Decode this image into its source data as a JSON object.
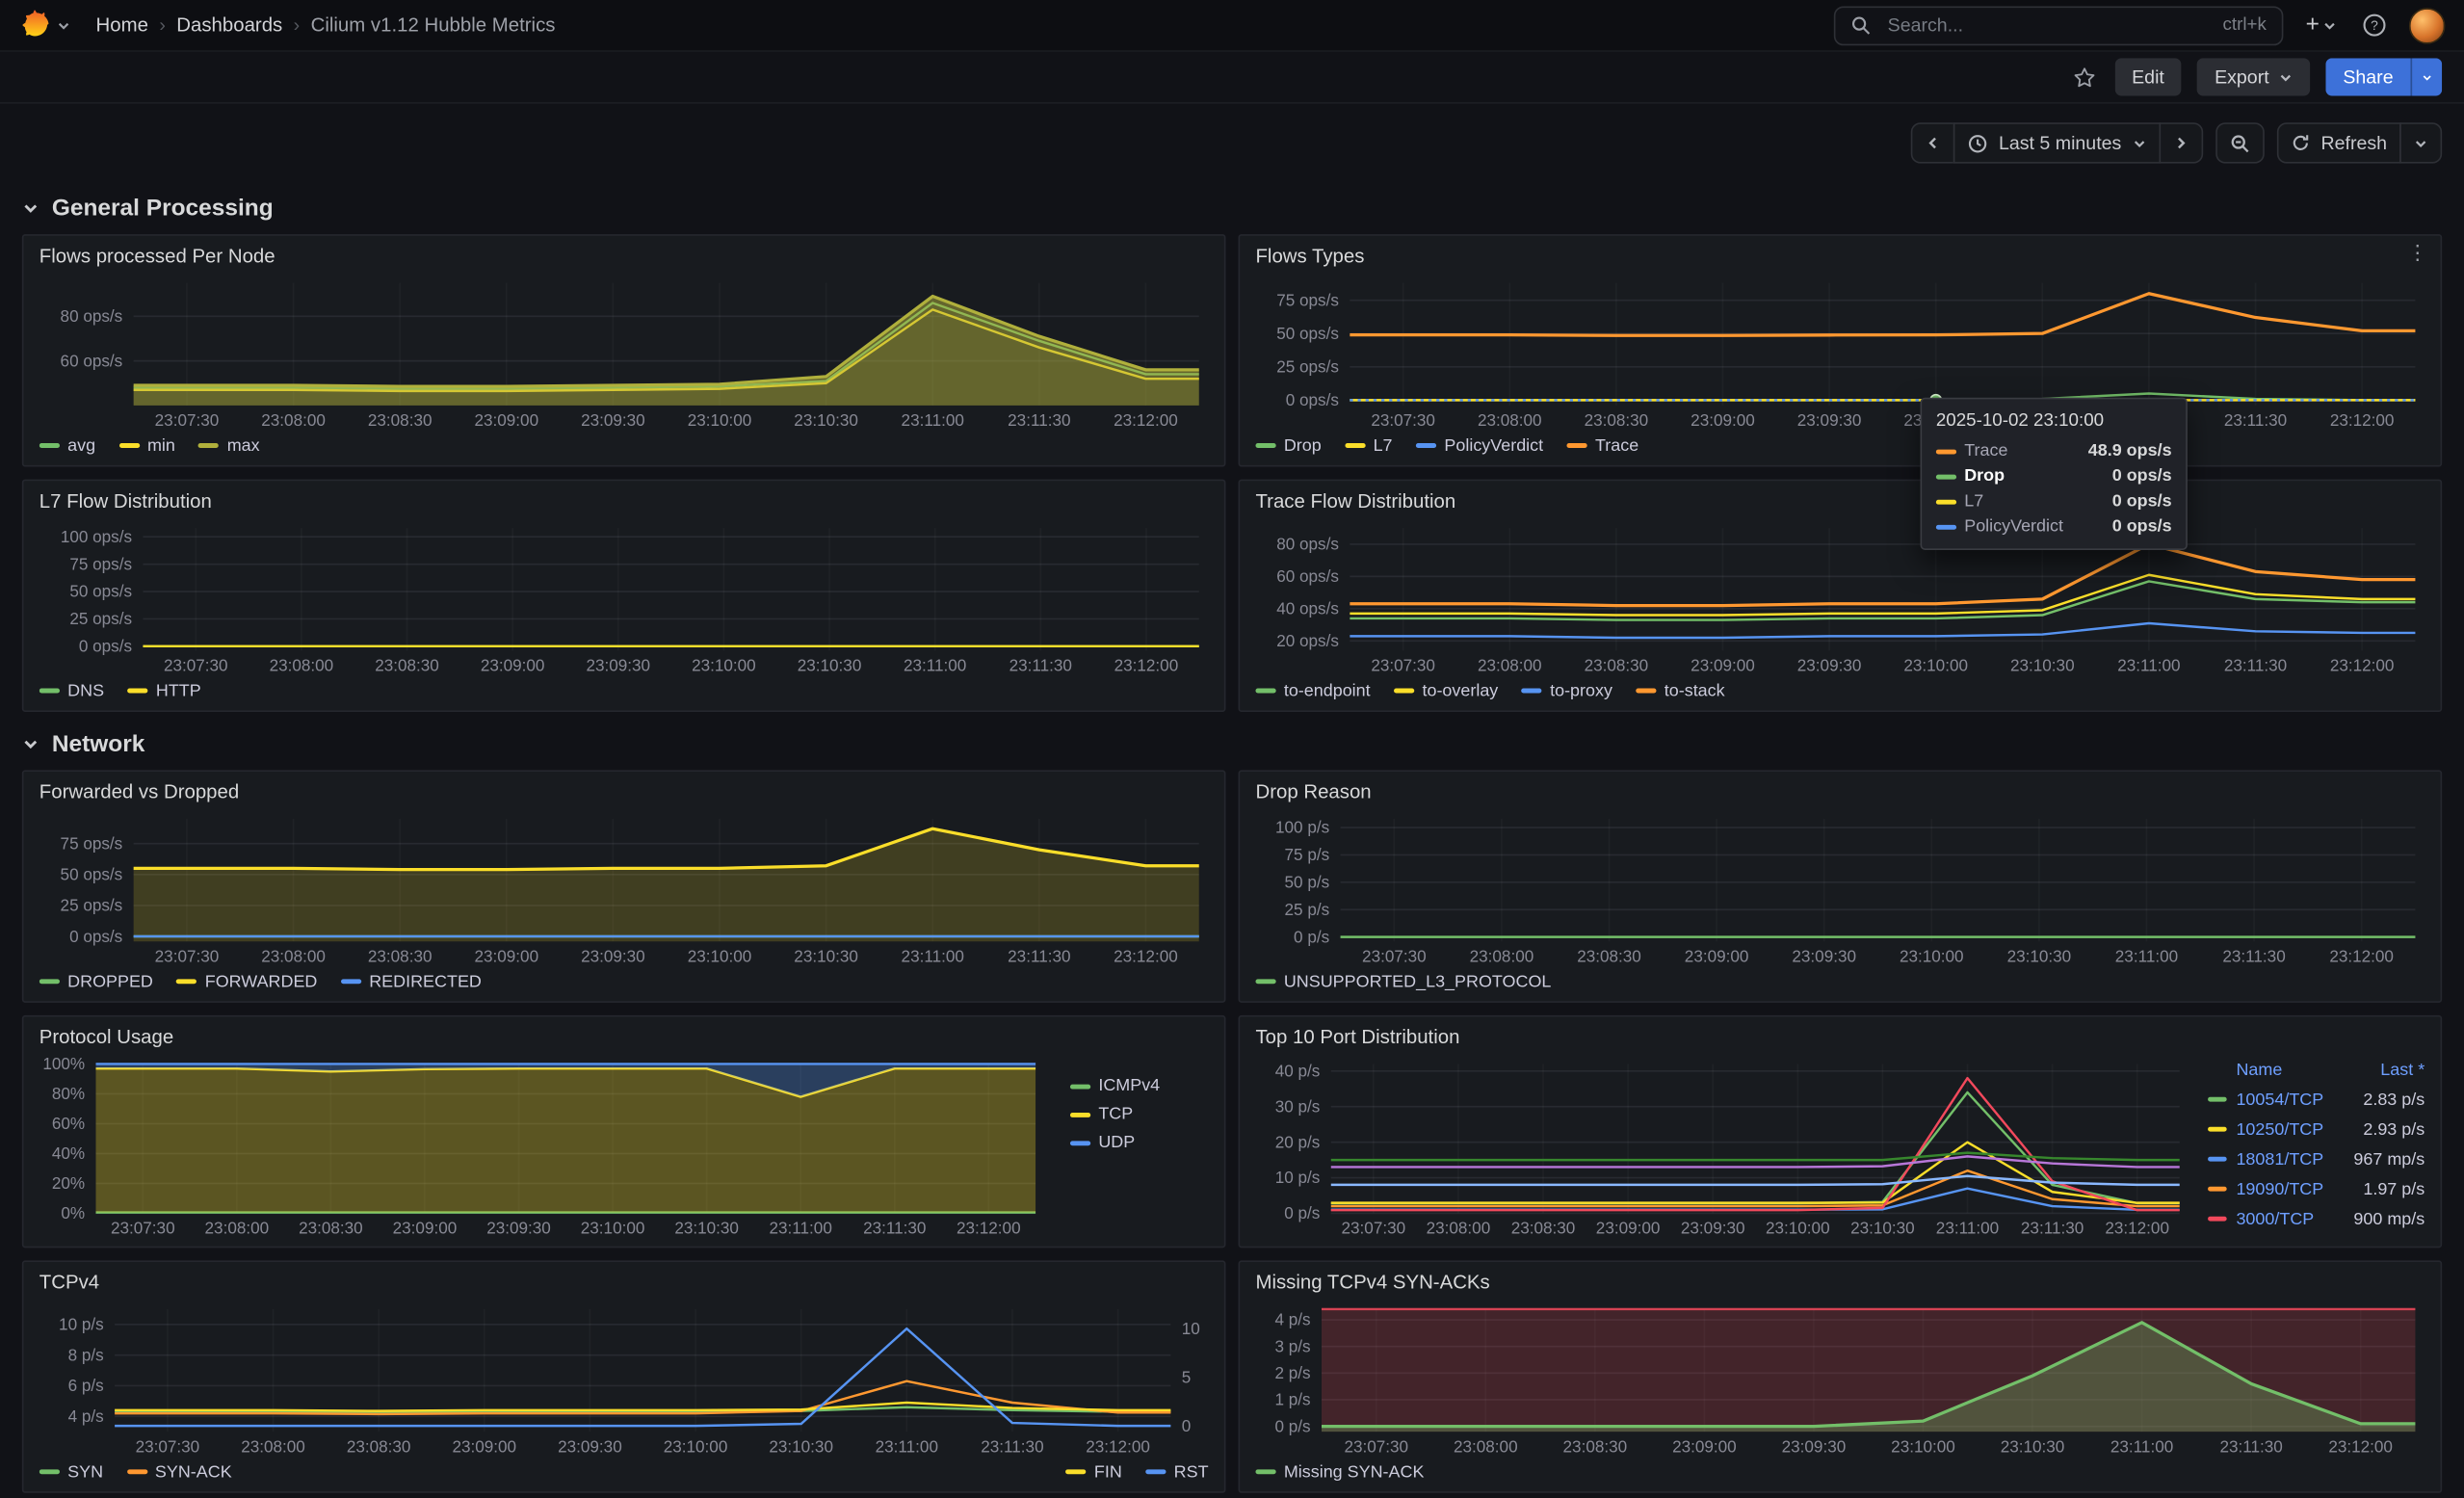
{
  "theme": {
    "primary": "#3d71d9",
    "background": "#111217",
    "panel": "#181b1f",
    "link": "#6e9fff"
  },
  "nav": {
    "breadcrumb": [
      {
        "label": "Home"
      },
      {
        "label": "Dashboards"
      },
      {
        "label": "Cilium v1.12 Hubble Metrics"
      }
    ],
    "search": {
      "placeholder": "Search...",
      "shortcut": "ctrl+k"
    }
  },
  "toolbar": {
    "edit": "Edit",
    "export": "Export",
    "share": "Share"
  },
  "timebar": {
    "range": "Last 5 minutes",
    "refresh": "Refresh"
  },
  "sections": [
    {
      "title": "General Processing"
    },
    {
      "title": "Network"
    }
  ],
  "tooltip": {
    "timestamp": "2025-10-02 23:10:00",
    "rows": [
      {
        "name": "Trace",
        "value": "48.9 ops/s",
        "color": "#ff9830",
        "bold": false
      },
      {
        "name": "Drop",
        "value": "0 ops/s",
        "color": "#73bf69",
        "bold": true
      },
      {
        "name": "L7",
        "value": "0 ops/s",
        "color": "#fade2a",
        "bold": false
      },
      {
        "name": "PolicyVerdict",
        "value": "0 ops/s",
        "color": "#5794f2",
        "bold": false
      }
    ]
  },
  "x_ticks": [
    "23:07:30",
    "23:08:00",
    "23:08:30",
    "23:09:00",
    "23:09:30",
    "23:10:00",
    "23:10:30",
    "23:11:00",
    "23:11:30",
    "23:12:00"
  ],
  "chart_data": [
    {
      "id": "flows-processed-per-node",
      "section": 0,
      "title": "Flows processed Per Node",
      "type": "area",
      "legend_placement": "bottom",
      "ylim": [
        40,
        95
      ],
      "yticks": [
        {
          "v": 60,
          "label": "60 ops/s"
        },
        {
          "v": 80,
          "label": "80 ops/s"
        }
      ],
      "series": [
        {
          "name": "avg",
          "color": "#73bf69",
          "values": [
            48,
            48,
            47.5,
            47.5,
            48,
            48.5,
            51,
            86,
            69,
            54
          ]
        },
        {
          "name": "min",
          "color": "#fade2a",
          "values": [
            47,
            47,
            46.5,
            46.5,
            47,
            47.5,
            50,
            83,
            66,
            52
          ]
        },
        {
          "name": "max",
          "color": "#b0b03c",
          "fill": 0.5,
          "width": 2,
          "values": [
            49,
            49,
            48.5,
            48.5,
            49,
            49.5,
            53,
            89,
            71,
            56
          ]
        }
      ]
    },
    {
      "id": "flows-types",
      "section": 0,
      "title": "Flows Types",
      "type": "line",
      "menu": true,
      "legend_placement": "bottom",
      "ylim": [
        -4,
        88
      ],
      "yticks": [
        {
          "v": 0,
          "label": "0 ops/s"
        },
        {
          "v": 25,
          "label": "25 ops/s"
        },
        {
          "v": 50,
          "label": "50 ops/s"
        },
        {
          "v": 75,
          "label": "75 ops/s"
        }
      ],
      "series": [
        {
          "name": "Drop",
          "color": "#73bf69",
          "values": [
            0,
            0,
            0,
            0,
            0,
            0,
            1,
            5,
            1,
            0
          ]
        },
        {
          "name": "L7",
          "color": "#fade2a",
          "values": [
            0,
            0,
            0,
            0,
            0,
            0,
            0,
            0,
            0,
            0
          ]
        },
        {
          "name": "PolicyVerdict",
          "color": "#5794f2",
          "dash": "2,3",
          "values": [
            0,
            0,
            0,
            0,
            0,
            0,
            0,
            0,
            0,
            0
          ]
        },
        {
          "name": "Trace",
          "color": "#ff9830",
          "width": 2,
          "values": [
            49,
            49,
            48.5,
            48.5,
            48.9,
            49,
            50,
            80,
            62,
            52
          ]
        }
      ],
      "point": {
        "tick": 5,
        "value": 0,
        "color": "#73bf69"
      }
    },
    {
      "id": "l7-flow-distribution",
      "section": 0,
      "title": "L7 Flow Distribution",
      "type": "line",
      "legend_placement": "bottom",
      "ylim": [
        -4,
        108
      ],
      "yticks": [
        {
          "v": 0,
          "label": "0 ops/s"
        },
        {
          "v": 25,
          "label": "25 ops/s"
        },
        {
          "v": 50,
          "label": "50 ops/s"
        },
        {
          "v": 75,
          "label": "75 ops/s"
        },
        {
          "v": 100,
          "label": "100 ops/s"
        }
      ],
      "series": [
        {
          "name": "DNS",
          "color": "#73bf69",
          "values": [
            0,
            0,
            0,
            0,
            0,
            0,
            0,
            0,
            0,
            0
          ]
        },
        {
          "name": "HTTP",
          "color": "#fade2a",
          "values": [
            0,
            0,
            0,
            0,
            0,
            0,
            0,
            0,
            0,
            0
          ]
        }
      ]
    },
    {
      "id": "trace-flow-distribution",
      "section": 0,
      "title": "Trace Flow Distribution",
      "type": "line",
      "legend_placement": "bottom",
      "ylim": [
        14,
        90
      ],
      "yticks": [
        {
          "v": 20,
          "label": "20 ops/s"
        },
        {
          "v": 40,
          "label": "40 ops/s"
        },
        {
          "v": 60,
          "label": "60 ops/s"
        },
        {
          "v": 80,
          "label": "80 ops/s"
        }
      ],
      "series": [
        {
          "name": "to-endpoint",
          "color": "#73bf69",
          "values": [
            34,
            34,
            33,
            33,
            34,
            34,
            36,
            57,
            46,
            44
          ]
        },
        {
          "name": "to-overlay",
          "color": "#fade2a",
          "values": [
            37,
            37,
            36,
            36,
            37,
            37,
            39,
            61,
            49,
            46
          ]
        },
        {
          "name": "to-proxy",
          "color": "#5794f2",
          "values": [
            23,
            23,
            22,
            22,
            23,
            23,
            24,
            31,
            26,
            25
          ]
        },
        {
          "name": "to-stack",
          "color": "#ff9830",
          "width": 2,
          "values": [
            43,
            43,
            42,
            42,
            43,
            43,
            46,
            80,
            63,
            58
          ]
        }
      ]
    },
    {
      "id": "forwarded-vs-dropped",
      "section": 1,
      "title": "Forwarded vs Dropped",
      "type": "area",
      "legend_placement": "bottom",
      "ylim": [
        -4,
        95
      ],
      "yticks": [
        {
          "v": 0,
          "label": "0 ops/s"
        },
        {
          "v": 25,
          "label": "25 ops/s"
        },
        {
          "v": 50,
          "label": "50 ops/s"
        },
        {
          "v": 75,
          "label": "75 ops/s"
        }
      ],
      "series": [
        {
          "name": "DROPPED",
          "color": "#73bf69",
          "values": [
            0,
            0,
            0,
            0,
            0,
            0,
            0,
            0,
            0,
            0
          ]
        },
        {
          "name": "FORWARDED",
          "color": "#fade2a",
          "fill": 0.18,
          "width": 2,
          "values": [
            55,
            55,
            54,
            54,
            55,
            55,
            57,
            87,
            70,
            57
          ]
        },
        {
          "name": "REDIRECTED",
          "color": "#5794f2",
          "values": [
            0,
            0,
            0,
            0,
            0,
            0,
            0,
            0,
            0,
            0
          ]
        }
      ]
    },
    {
      "id": "drop-reason",
      "section": 1,
      "title": "Drop Reason",
      "type": "line",
      "legend_placement": "bottom",
      "ylim": [
        -4,
        108
      ],
      "yticks": [
        {
          "v": 0,
          "label": "0 p/s"
        },
        {
          "v": 25,
          "label": "25 p/s"
        },
        {
          "v": 50,
          "label": "50 p/s"
        },
        {
          "v": 75,
          "label": "75 p/s"
        },
        {
          "v": 100,
          "label": "100 p/s"
        }
      ],
      "series": [
        {
          "name": "UNSUPPORTED_L3_PROTOCOL",
          "color": "#73bf69",
          "values": [
            0,
            0,
            0,
            0,
            0,
            0,
            0,
            0,
            0,
            0
          ]
        }
      ]
    },
    {
      "id": "protocol-usage",
      "section": 1,
      "title": "Protocol Usage",
      "type": "area",
      "stacked": true,
      "legend_placement": "right",
      "ylim": [
        0,
        100
      ],
      "yticks": [
        {
          "v": 0,
          "label": "0%"
        },
        {
          "v": 20,
          "label": "20%"
        },
        {
          "v": 40,
          "label": "40%"
        },
        {
          "v": 60,
          "label": "60%"
        },
        {
          "v": 80,
          "label": "80%"
        },
        {
          "v": 100,
          "label": "100%"
        }
      ],
      "series": [
        {
          "name": "ICMPv4",
          "color": "#73bf69",
          "fill": 0.3,
          "values": [
            0.5,
            0.5,
            0.5,
            0.5,
            0.5,
            0.5,
            0.5,
            0.5,
            0.5,
            0.5
          ]
        },
        {
          "name": "TCP",
          "color": "#fade2a",
          "fill": 0.3,
          "values": [
            96.5,
            96.5,
            94.5,
            96,
            96.5,
            96.5,
            96.5,
            77.5,
            96.5,
            96.5
          ]
        },
        {
          "name": "UDP",
          "color": "#5794f2",
          "fill": 0.3,
          "values": [
            3,
            3,
            5,
            3.5,
            3,
            3,
            3,
            22,
            3,
            3
          ]
        }
      ]
    },
    {
      "id": "top-10-port-distribution",
      "section": 1,
      "title": "Top 10 Port Distribution",
      "type": "line",
      "legend_placement": "none",
      "ylim": [
        0,
        42
      ],
      "yticks": [
        {
          "v": 0,
          "label": "0 p/s"
        },
        {
          "v": 10,
          "label": "10 p/s"
        },
        {
          "v": 20,
          "label": "20 p/s"
        },
        {
          "v": 30,
          "label": "30 p/s"
        },
        {
          "v": 40,
          "label": "40 p/s"
        }
      ],
      "series": [
        {
          "name": "10054/TCP",
          "color": "#73bf69",
          "values": [
            2.8,
            2.8,
            2.8,
            2.8,
            2.8,
            2.8,
            3.2,
            34,
            8,
            2.83
          ]
        },
        {
          "name": "10250/TCP",
          "color": "#fade2a",
          "values": [
            2.9,
            2.9,
            2.9,
            2.9,
            2.9,
            2.9,
            3,
            20,
            6,
            2.93
          ]
        },
        {
          "name": "18081/TCP",
          "color": "#5794f2",
          "values": [
            1,
            1,
            1,
            1,
            1,
            1,
            1.1,
            7,
            2,
            0.97
          ]
        },
        {
          "name": "19090/TCP",
          "color": "#ff9830",
          "values": [
            2,
            2,
            2,
            2,
            2,
            2,
            2.2,
            12,
            4,
            1.97
          ]
        },
        {
          "name": "3000/TCP",
          "color": "#f2495c",
          "values": [
            0.9,
            0.9,
            0.9,
            0.9,
            0.9,
            0.9,
            1.5,
            38,
            9,
            0.9
          ]
        },
        {
          "name": "",
          "color": "#b877d9",
          "values": [
            13,
            13,
            13,
            13,
            13,
            13,
            13.2,
            16,
            14,
            13
          ]
        },
        {
          "name": "",
          "color": "#37872d",
          "values": [
            15,
            15,
            15,
            15,
            15,
            15,
            15,
            17,
            15.5,
            15
          ]
        },
        {
          "name": "",
          "color": "#8ab8ff",
          "values": [
            8,
            8,
            8,
            8,
            8,
            8,
            8.2,
            10.5,
            8.6,
            8
          ]
        }
      ],
      "table": {
        "columns": [
          "Name",
          "Last *"
        ],
        "rows": [
          {
            "name": "10054/TCP",
            "value": "2.83 p/s",
            "color": "#73bf69"
          },
          {
            "name": "10250/TCP",
            "value": "2.93 p/s",
            "color": "#fade2a"
          },
          {
            "name": "18081/TCP",
            "value": "967 mp/s",
            "color": "#5794f2"
          },
          {
            "name": "19090/TCP",
            "value": "1.97 p/s",
            "color": "#ff9830"
          },
          {
            "name": "3000/TCP",
            "value": "900 mp/s",
            "color": "#f2495c"
          }
        ]
      }
    },
    {
      "id": "tcpv4",
      "section": 1,
      "title": "TCPv4",
      "type": "line",
      "legend_placement": "split",
      "ylim": [
        3,
        11
      ],
      "yticks": [
        {
          "v": 4,
          "label": "4 p/s"
        },
        {
          "v": 6,
          "label": "6 p/s"
        },
        {
          "v": 8,
          "label": "8 p/s"
        },
        {
          "v": 10,
          "label": "10 p/s"
        }
      ],
      "right": {
        "ylim": [
          -0.6,
          12
        ],
        "yticks": [
          {
            "v": 0,
            "label": "0"
          },
          {
            "v": 5,
            "label": "5"
          },
          {
            "v": 10,
            "label": "10"
          }
        ]
      },
      "series": [
        {
          "name": "SYN",
          "color": "#73bf69",
          "values": [
            4.3,
            4.3,
            4.25,
            4.3,
            4.3,
            4.3,
            4.35,
            4.6,
            4.4,
            4.3
          ]
        },
        {
          "name": "SYN-ACK",
          "color": "#ff9830",
          "values": [
            4.2,
            4.2,
            4.15,
            4.2,
            4.2,
            4.2,
            4.35,
            6.3,
            4.9,
            4.25
          ]
        },
        {
          "name": "FIN",
          "color": "#fade2a",
          "group": "right",
          "values": [
            4.4,
            4.4,
            4.35,
            4.4,
            4.4,
            4.4,
            4.45,
            4.9,
            4.55,
            4.4
          ]
        },
        {
          "name": "RST",
          "color": "#5794f2",
          "group": "right",
          "axis": "right",
          "values": [
            0,
            0,
            0,
            0,
            0,
            0,
            0.2,
            10,
            0.3,
            0
          ]
        }
      ]
    },
    {
      "id": "missing-tcpv4-syn-acks",
      "section": 1,
      "title": "Missing TCPv4 SYN-ACKs",
      "type": "area",
      "legend_placement": "bottom",
      "ylim": [
        -0.2,
        4.4
      ],
      "yticks": [
        {
          "v": 0,
          "label": "0 p/s"
        },
        {
          "v": 1,
          "label": "1 p/s"
        },
        {
          "v": 2,
          "label": "2 p/s"
        },
        {
          "v": 3,
          "label": "3 p/s"
        },
        {
          "v": 4,
          "label": "4 p/s"
        }
      ],
      "alert": {
        "color": "#f2495c",
        "fill_opacity": 0.2
      },
      "series": [
        {
          "name": "Missing SYN-ACK",
          "color": "#73bf69",
          "fill": 0.3,
          "width": 2,
          "values": [
            0,
            0,
            0,
            0,
            0,
            0.2,
            1.9,
            3.9,
            1.6,
            0.1
          ]
        }
      ]
    }
  ]
}
